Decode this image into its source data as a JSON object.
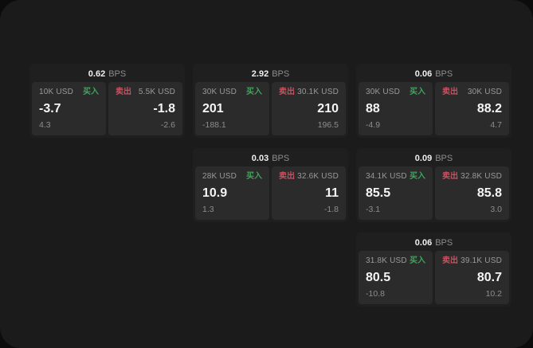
{
  "colors": {
    "outer_bg": "#0c0c0c",
    "panel_bg": "#1b1b1b",
    "card_bg": "#1f1f1f",
    "tile_bg": "#2b2b2b",
    "text_primary": "#f5f5f5",
    "text_muted": "#8d8d8d",
    "buy_green": "#3fa45b",
    "sell_red": "#c9515f"
  },
  "labels": {
    "bps_unit": "BPS",
    "buy": "买入",
    "sell": "卖出"
  },
  "cards": [
    {
      "bps": "0.62",
      "grid": {
        "col": 1,
        "row": 1
      },
      "buy": {
        "notional": "10K USD",
        "value": "-3.7",
        "delta": "4.3"
      },
      "sell": {
        "notional": "5.5K USD",
        "value": "-1.8",
        "delta": "-2.6"
      }
    },
    {
      "bps": "2.92",
      "grid": {
        "col": 2,
        "row": 1
      },
      "buy": {
        "notional": "30K USD",
        "value": "201",
        "delta": "-188.1"
      },
      "sell": {
        "notional": "30.1K USD",
        "value": "210",
        "delta": "196.5"
      }
    },
    {
      "bps": "0.06",
      "grid": {
        "col": 3,
        "row": 1
      },
      "buy": {
        "notional": "30K USD",
        "value": "88",
        "delta": "-4.9"
      },
      "sell": {
        "notional": "30K USD",
        "value": "88.2",
        "delta": "4.7"
      }
    },
    {
      "bps": "0.03",
      "grid": {
        "col": 2,
        "row": 2
      },
      "buy": {
        "notional": "28K USD",
        "value": "10.9",
        "delta": "1.3"
      },
      "sell": {
        "notional": "32.6K USD",
        "value": "11",
        "delta": "-1.8"
      }
    },
    {
      "bps": "0.09",
      "grid": {
        "col": 3,
        "row": 2
      },
      "buy": {
        "notional": "34.1K USD",
        "value": "85.5",
        "delta": "-3.1"
      },
      "sell": {
        "notional": "32.8K USD",
        "value": "85.8",
        "delta": "3.0"
      }
    },
    {
      "bps": "0.06",
      "grid": {
        "col": 3,
        "row": 3
      },
      "buy": {
        "notional": "31.8K USD",
        "value": "80.5",
        "delta": "-10.8"
      },
      "sell": {
        "notional": "39.1K USD",
        "value": "80.7",
        "delta": "10.2"
      }
    }
  ]
}
